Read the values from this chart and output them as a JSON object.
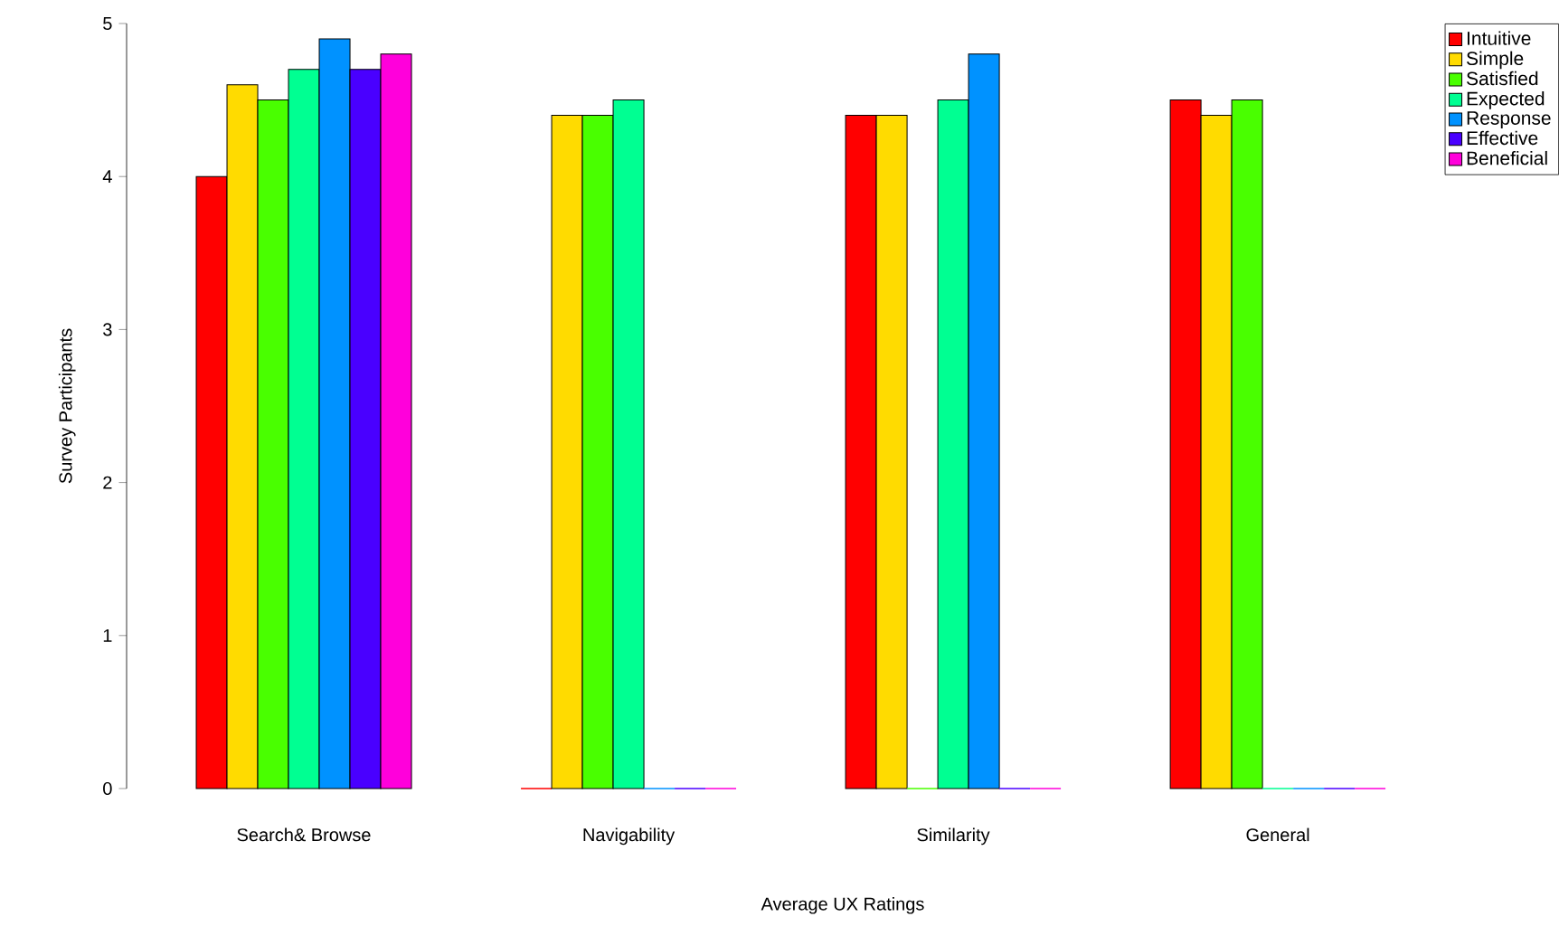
{
  "chart_data": {
    "type": "bar",
    "xlabel": "Average UX Ratings",
    "ylabel": "Survey Participants",
    "categories": [
      "Search& Browse",
      "Navigability",
      "Similarity",
      "General"
    ],
    "series": [
      {
        "name": "Intuitive",
        "color": "#ff0000",
        "values": [
          4.0,
          0,
          4.4,
          4.5
        ]
      },
      {
        "name": "Simple",
        "color": "#ffdb00",
        "values": [
          4.6,
          4.4,
          4.4,
          4.4
        ]
      },
      {
        "name": "Satisfied",
        "color": "#49ff00",
        "values": [
          4.5,
          4.4,
          0,
          4.5
        ]
      },
      {
        "name": "Expected",
        "color": "#00ff92",
        "values": [
          4.7,
          4.5,
          4.5,
          0
        ]
      },
      {
        "name": "Response",
        "color": "#0092ff",
        "values": [
          4.9,
          0,
          4.8,
          0
        ]
      },
      {
        "name": "Effective",
        "color": "#4900ff",
        "values": [
          4.7,
          0,
          0,
          0
        ]
      },
      {
        "name": "Beneficial",
        "color": "#ff00db",
        "values": [
          4.8,
          0,
          0,
          0
        ]
      }
    ],
    "ylim": [
      0,
      5
    ],
    "yticks": [
      0,
      1,
      2,
      3,
      4,
      5
    ],
    "legend": "top right"
  }
}
